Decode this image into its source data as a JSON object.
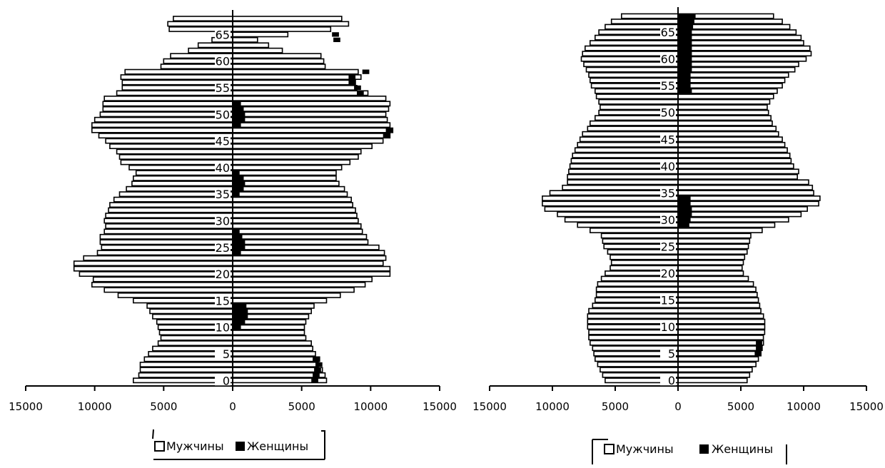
{
  "chart_data": [
    {
      "type": "bar",
      "orientation": "horizontal",
      "layout": "population-pyramid",
      "xlim": [
        -15000,
        15000
      ],
      "x_ticks": [
        -15000,
        -10000,
        -5000,
        0,
        5000,
        10000,
        15000
      ],
      "x_tick_labels": [
        "15000",
        "10000",
        "5000",
        "0",
        "5000",
        "10000",
        "15000"
      ],
      "y_tick_labels": [
        "0",
        "5",
        "10",
        "15",
        "20",
        "25",
        "30",
        "35",
        "40",
        "45",
        "50",
        "55",
        "60",
        "65"
      ],
      "categories": [
        0,
        1,
        2,
        3,
        4,
        5,
        6,
        7,
        8,
        9,
        10,
        11,
        12,
        13,
        14,
        15,
        16,
        17,
        18,
        19,
        20,
        21,
        22,
        23,
        24,
        25,
        26,
        27,
        28,
        29,
        30,
        31,
        32,
        33,
        34,
        35,
        36,
        37,
        38,
        39,
        40,
        41,
        42,
        43,
        44,
        45,
        46,
        47,
        48,
        49,
        50,
        51,
        52,
        53,
        54,
        55,
        56,
        57,
        58,
        59,
        60,
        61,
        62,
        63,
        64,
        65,
        66,
        67,
        68
      ],
      "series": [
        {
          "name": "Мужчины",
          "color": "#ffffff",
          "values": [
            -7200,
            -6800,
            -6700,
            -6700,
            -6400,
            -6100,
            -5800,
            -5400,
            -5200,
            -5300,
            -5400,
            -5500,
            -5800,
            -6000,
            -6200,
            -7200,
            -8300,
            -9300,
            -10200,
            -10100,
            -11100,
            -11500,
            -11500,
            -10800,
            -9800,
            -9500,
            -9600,
            -9600,
            -9300,
            -9200,
            -9300,
            -9200,
            -9000,
            -8900,
            -8600,
            -8200,
            -7700,
            -7300,
            -7200,
            -7000,
            -7500,
            -8100,
            -8200,
            -8400,
            -8900,
            -9200,
            -9700,
            -10200,
            -10200,
            -10000,
            -9600,
            -9400,
            -9400,
            -9300,
            -8400,
            -8000,
            -8000,
            -8100,
            -7800,
            -5200,
            -5000,
            -4500,
            -3200,
            -2500,
            -1500,
            -800,
            -4600,
            -4700,
            -4300
          ],
          "right_values": [
            6800,
            6700,
            6500,
            6200,
            6300,
            6000,
            5800,
            5700,
            5300,
            5200,
            5200,
            5300,
            5500,
            5700,
            5900,
            6800,
            7800,
            8800,
            9600,
            10100,
            11400,
            11400,
            10900,
            11100,
            11000,
            10600,
            9800,
            9700,
            9400,
            9300,
            9100,
            9000,
            8900,
            8700,
            8600,
            8300,
            8100,
            7700,
            7500,
            7500,
            7900,
            8500,
            9100,
            9300,
            10100,
            10900,
            11400,
            11600,
            11400,
            11200,
            11100,
            11300,
            11400,
            11100,
            9800,
            9000,
            8900,
            9300,
            9100,
            6700,
            6600,
            6400,
            3600,
            2600,
            1800,
            4000,
            7100,
            8400,
            7900
          ]
        },
        {
          "name": "Женщины",
          "color": "#000000",
          "values": [
            6200,
            6300,
            6400,
            6500,
            6300,
            0,
            0,
            0,
            0,
            0,
            600,
            900,
            1100,
            1100,
            1000,
            0,
            0,
            0,
            0,
            0,
            0,
            0,
            0,
            0,
            600,
            900,
            900,
            700,
            500,
            0,
            0,
            0,
            0,
            0,
            0,
            500,
            800,
            900,
            800,
            500,
            0,
            0,
            0,
            0,
            0,
            0,
            11400,
            11600,
            600,
            900,
            900,
            800,
            600,
            0,
            9500,
            9300,
            8900,
            8900,
            9900,
            0,
            0,
            0,
            0,
            0,
            7800,
            7700,
            0,
            0,
            0
          ]
        }
      ]
    },
    {
      "type": "bar",
      "orientation": "horizontal",
      "layout": "population-pyramid",
      "xlim": [
        -15000,
        15000
      ],
      "x_ticks": [
        -15000,
        -10000,
        -5000,
        0,
        5000,
        10000,
        15000
      ],
      "x_tick_labels": [
        "15000",
        "10000",
        "5000",
        "0",
        "5000",
        "10000",
        "15000"
      ],
      "y_tick_labels": [
        "0",
        "5",
        "10",
        "15",
        "20",
        "25",
        "30",
        "35",
        "40",
        "45",
        "50",
        "55",
        "60",
        "65"
      ],
      "categories": [
        0,
        1,
        2,
        3,
        4,
        5,
        6,
        7,
        8,
        9,
        10,
        11,
        12,
        13,
        14,
        15,
        16,
        17,
        18,
        19,
        20,
        21,
        22,
        23,
        24,
        25,
        26,
        27,
        28,
        29,
        30,
        31,
        32,
        33,
        34,
        35,
        36,
        37,
        38,
        39,
        40,
        41,
        42,
        43,
        44,
        45,
        46,
        47,
        48,
        49,
        50,
        51,
        52,
        53,
        54,
        55,
        56,
        57,
        58,
        59,
        60,
        61,
        62,
        63,
        64,
        65,
        66,
        67,
        68
      ],
      "series": [
        {
          "name": "Мужчины",
          "color": "#ffffff",
          "values": [
            -5800,
            -6000,
            -6200,
            -6400,
            -6600,
            -6700,
            -6800,
            -7000,
            -7100,
            -7100,
            -7200,
            -7200,
            -7200,
            -7100,
            -6800,
            -6600,
            -6500,
            -6500,
            -6400,
            -6100,
            -5800,
            -5400,
            -5300,
            -5400,
            -5600,
            -5900,
            -6000,
            -6100,
            -7000,
            -8000,
            -9000,
            -9600,
            -10600,
            -10800,
            -10800,
            -10200,
            -9200,
            -8800,
            -8800,
            -8700,
            -8600,
            -8500,
            -8400,
            -8200,
            -8000,
            -7800,
            -7600,
            -7200,
            -7000,
            -6600,
            -6300,
            -6200,
            -6300,
            -6500,
            -6600,
            -6900,
            -7000,
            -7100,
            -7300,
            -7500,
            -7700,
            -7600,
            -7400,
            -7000,
            -6600,
            -6300,
            -5800,
            -5300,
            -4500
          ],
          "right_values": [
            5500,
            5700,
            5900,
            6200,
            6400,
            6600,
            6700,
            6800,
            6800,
            6900,
            6900,
            6900,
            6800,
            6600,
            6500,
            6400,
            6300,
            6200,
            6000,
            5600,
            5200,
            5100,
            5200,
            5300,
            5500,
            5600,
            5700,
            5800,
            6700,
            7700,
            8800,
            9800,
            10300,
            11200,
            11300,
            10800,
            10700,
            10400,
            9500,
            9600,
            9200,
            9000,
            8900,
            8700,
            8500,
            8300,
            8000,
            7800,
            7500,
            7400,
            7200,
            7100,
            7300,
            7600,
            7900,
            8300,
            8500,
            8800,
            9300,
            9600,
            10200,
            10600,
            10500,
            10000,
            9800,
            9400,
            8900,
            8300,
            7600
          ]
        },
        {
          "name": "Женщины",
          "color": "#000000",
          "values": [
            0,
            0,
            0,
            0,
            0,
            6600,
            6700,
            6700,
            0,
            0,
            0,
            0,
            0,
            0,
            0,
            0,
            0,
            0,
            0,
            0,
            0,
            0,
            0,
            0,
            0,
            0,
            0,
            0,
            0,
            900,
            1000,
            1100,
            1100,
            1000,
            1000,
            0,
            0,
            0,
            0,
            0,
            0,
            0,
            0,
            0,
            0,
            0,
            0,
            0,
            0,
            0,
            0,
            0,
            0,
            0,
            1100,
            1000,
            1000,
            1000,
            1100,
            1100,
            1100,
            1100,
            1100,
            1100,
            1100,
            1100,
            1200,
            1300,
            1400
          ]
        }
      ]
    }
  ],
  "legends": [
    {
      "male_label": "Мужчины",
      "female_label": "Женщины"
    },
    {
      "male_label": "Мужчины",
      "female_label": "Женщины"
    }
  ]
}
